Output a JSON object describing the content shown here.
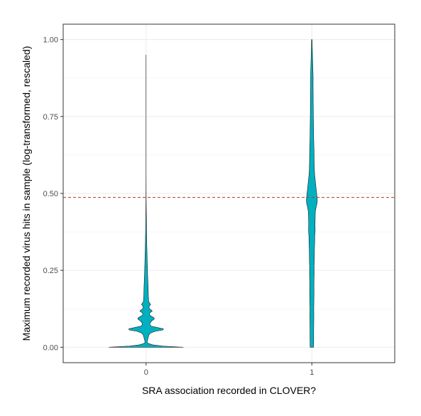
{
  "chart_data": {
    "type": "violin",
    "title": "",
    "xlabel": "SRA association recorded in CLOVER?",
    "ylabel": "Maximum recorded virus hits in sample (log-transformed, rescaled)",
    "categories": [
      "0",
      "1"
    ],
    "ylim": [
      -0.05,
      1.05
    ],
    "y_ticks": [
      "0.00",
      "0.25",
      "0.50",
      "0.75",
      "1.00"
    ],
    "y_tick_values": [
      0,
      0.25,
      0.5,
      0.75,
      1.0
    ],
    "grid": true,
    "legend": "none",
    "reference_line": {
      "y": 0.487,
      "style": "dashed",
      "color": "#b5381f"
    },
    "fill_color": "#00b0c0",
    "outline_color": "#1a1a1a",
    "violins": [
      {
        "category": "0",
        "density": [
          [
            0.0,
            0.45
          ],
          [
            0.004,
            0.2
          ],
          [
            0.008,
            0.08
          ],
          [
            0.012,
            0.03
          ],
          [
            0.016,
            0.012
          ],
          [
            0.022,
            0.016
          ],
          [
            0.028,
            0.022
          ],
          [
            0.034,
            0.028
          ],
          [
            0.04,
            0.034
          ],
          [
            0.046,
            0.052
          ],
          [
            0.052,
            0.11
          ],
          [
            0.056,
            0.2
          ],
          [
            0.06,
            0.21
          ],
          [
            0.064,
            0.14
          ],
          [
            0.069,
            0.06
          ],
          [
            0.074,
            0.045
          ],
          [
            0.08,
            0.05
          ],
          [
            0.086,
            0.07
          ],
          [
            0.092,
            0.1
          ],
          [
            0.096,
            0.095
          ],
          [
            0.1,
            0.07
          ],
          [
            0.104,
            0.045
          ],
          [
            0.108,
            0.038
          ],
          [
            0.113,
            0.05
          ],
          [
            0.118,
            0.075
          ],
          [
            0.122,
            0.058
          ],
          [
            0.126,
            0.038
          ],
          [
            0.13,
            0.035
          ],
          [
            0.135,
            0.042
          ],
          [
            0.139,
            0.055
          ],
          [
            0.143,
            0.045
          ],
          [
            0.148,
            0.032
          ],
          [
            0.155,
            0.03
          ],
          [
            0.165,
            0.028
          ],
          [
            0.18,
            0.026
          ],
          [
            0.2,
            0.024
          ],
          [
            0.22,
            0.021
          ],
          [
            0.24,
            0.018
          ],
          [
            0.26,
            0.016
          ],
          [
            0.28,
            0.014
          ],
          [
            0.3,
            0.012
          ],
          [
            0.32,
            0.01
          ],
          [
            0.34,
            0.008
          ],
          [
            0.36,
            0.007
          ],
          [
            0.38,
            0.0055
          ],
          [
            0.4,
            0.0045
          ],
          [
            0.42,
            0.0035
          ],
          [
            0.44,
            0.0025
          ],
          [
            0.46,
            0.0018
          ],
          [
            0.48,
            0.0012
          ],
          [
            0.5,
            0.0008
          ],
          [
            0.52,
            0.0005
          ],
          [
            0.54,
            0.0004
          ],
          [
            0.55,
            0.0003
          ],
          [
            0.56,
            0.0002
          ],
          [
            0.6,
            0.0002
          ],
          [
            0.7,
            0.0002
          ],
          [
            0.8,
            0.0002
          ],
          [
            0.9,
            0.0002
          ],
          [
            0.95,
            0.0001
          ]
        ]
      },
      {
        "category": "1",
        "density": [
          [
            0.0,
            0.02
          ],
          [
            0.01,
            0.021
          ],
          [
            0.03,
            0.022
          ],
          [
            0.05,
            0.022
          ],
          [
            0.08,
            0.023
          ],
          [
            0.1,
            0.024
          ],
          [
            0.12,
            0.023
          ],
          [
            0.14,
            0.024
          ],
          [
            0.16,
            0.025
          ],
          [
            0.18,
            0.026
          ],
          [
            0.2,
            0.025
          ],
          [
            0.22,
            0.026
          ],
          [
            0.24,
            0.028
          ],
          [
            0.26,
            0.027
          ],
          [
            0.28,
            0.029
          ],
          [
            0.3,
            0.03
          ],
          [
            0.32,
            0.031
          ],
          [
            0.34,
            0.034
          ],
          [
            0.36,
            0.035
          ],
          [
            0.38,
            0.04
          ],
          [
            0.4,
            0.038
          ],
          [
            0.42,
            0.04
          ],
          [
            0.44,
            0.042
          ],
          [
            0.45,
            0.048
          ],
          [
            0.46,
            0.056
          ],
          [
            0.47,
            0.064
          ],
          [
            0.48,
            0.066
          ],
          [
            0.49,
            0.062
          ],
          [
            0.5,
            0.058
          ],
          [
            0.51,
            0.054
          ],
          [
            0.52,
            0.05
          ],
          [
            0.54,
            0.042
          ],
          [
            0.56,
            0.034
          ],
          [
            0.58,
            0.03
          ],
          [
            0.6,
            0.028
          ],
          [
            0.62,
            0.027
          ],
          [
            0.64,
            0.026
          ],
          [
            0.66,
            0.024
          ],
          [
            0.68,
            0.022
          ],
          [
            0.7,
            0.021
          ],
          [
            0.72,
            0.02
          ],
          [
            0.74,
            0.019
          ],
          [
            0.76,
            0.018
          ],
          [
            0.78,
            0.017
          ],
          [
            0.8,
            0.016
          ],
          [
            0.82,
            0.016
          ],
          [
            0.84,
            0.015
          ],
          [
            0.86,
            0.015
          ],
          [
            0.88,
            0.015
          ],
          [
            0.9,
            0.013
          ],
          [
            0.92,
            0.011
          ],
          [
            0.94,
            0.009
          ],
          [
            0.96,
            0.007
          ],
          [
            0.98,
            0.005
          ],
          [
            1.0,
            0.003
          ]
        ]
      }
    ]
  }
}
